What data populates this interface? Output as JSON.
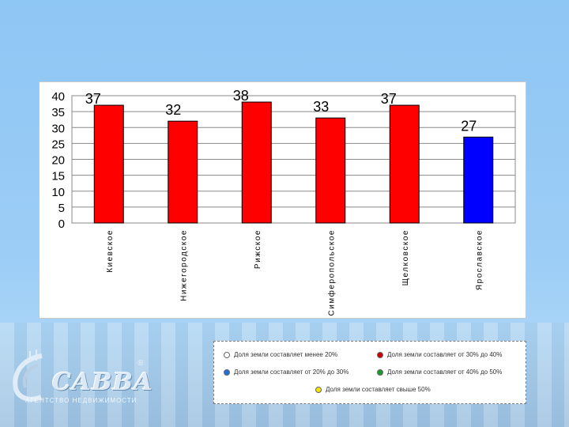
{
  "chart_data": {
    "type": "bar",
    "categories": [
      "Киевское",
      "Нижегородское",
      "Рижское",
      "Симферопольское",
      "Щелковское",
      "Ярославское"
    ],
    "values": [
      37,
      32,
      38,
      33,
      37,
      27
    ],
    "value_labels": [
      "37",
      "32",
      "38",
      "33",
      "37",
      "27"
    ],
    "bar_colors": [
      "#ff0000",
      "#ff0000",
      "#ff0000",
      "#ff0000",
      "#ff0000",
      "#0000ff"
    ],
    "ylim": [
      0,
      40
    ],
    "yticks": [
      "0",
      "5",
      "10",
      "15",
      "20",
      "25",
      "30",
      "35",
      "40"
    ],
    "grid": true,
    "title": "",
    "xlabel": "",
    "ylabel": ""
  },
  "legend": {
    "items": [
      {
        "label": "Доля земли составляет менее 20%",
        "color": "#ffffff"
      },
      {
        "label": "Доля земли составляет от 30% до 40%",
        "color": "#cc0000"
      },
      {
        "label": "Доля земли составляет от 20% до 30%",
        "color": "#1f6fd6"
      },
      {
        "label": "Доля земли составляет от 40% до 50%",
        "color": "#1a9a2a"
      },
      {
        "label": "Доля земли составляет свыше 50%",
        "color": "#f2e600"
      }
    ]
  },
  "logo": {
    "name": "САВВА",
    "subtitle": "АГЕНТСТВО НЕДВИЖИМОСТИ",
    "reg_mark": "®"
  }
}
